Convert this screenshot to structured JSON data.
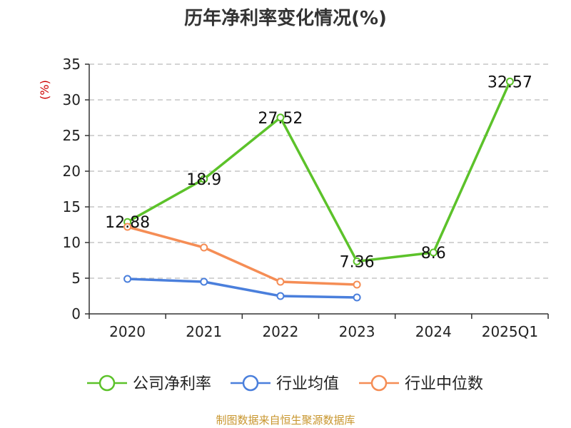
{
  "chart_data": {
    "type": "line",
    "title": "历年净利率变化情况(%)",
    "ylabel": "(%)",
    "xlabel": "",
    "categories": [
      "2020",
      "2021",
      "2022",
      "2023",
      "2024",
      "2025Q1"
    ],
    "y_ticks": [
      "0",
      "5",
      "10",
      "15",
      "20",
      "25",
      "30",
      "35"
    ],
    "ylim": [
      0,
      35
    ],
    "grid": true,
    "legend_position": "bottom",
    "series": [
      {
        "name": "公司净利率",
        "color": "#5cc22a",
        "values": [
          12.88,
          18.9,
          27.52,
          7.36,
          8.6,
          32.57
        ],
        "labels": [
          "12.88",
          "18.9",
          "27.52",
          "7.36",
          "8.6",
          "32.57"
        ]
      },
      {
        "name": "行业均值",
        "color": "#4a7fdc",
        "values": [
          4.9,
          4.5,
          2.5,
          2.3,
          null,
          null
        ]
      },
      {
        "name": "行业中位数",
        "color": "#f58d55",
        "values": [
          12.2,
          9.3,
          4.5,
          4.1,
          null,
          null
        ]
      }
    ]
  },
  "source_text": "制图数据来自恒生聚源数据库"
}
